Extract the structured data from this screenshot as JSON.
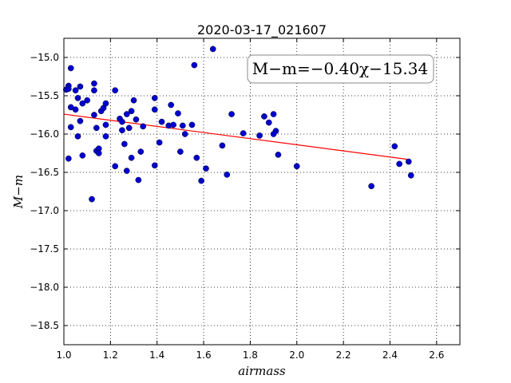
{
  "chart_data": {
    "type": "scatter",
    "title": "2020-03-17_021607",
    "xlabel": "airmass",
    "ylabel": "M−m",
    "xlim": [
      1.0,
      2.7
    ],
    "ylim": [
      -18.75,
      -14.75
    ],
    "y_inverted": false,
    "grid": true,
    "xticks": [
      1.0,
      1.2,
      1.4,
      1.6,
      1.8,
      2.0,
      2.2,
      2.4,
      2.6
    ],
    "xtick_labels": [
      "1.0",
      "1.2",
      "1.4",
      "1.6",
      "1.8",
      "2.0",
      "2.2",
      "2.4",
      "2.6"
    ],
    "yticks": [
      -15.0,
      -15.5,
      -16.0,
      -16.5,
      -17.0,
      -17.5,
      -18.0,
      -18.5
    ],
    "ytick_labels": [
      "−15.0",
      "−15.5",
      "−16.0",
      "−16.5",
      "−17.0",
      "−17.5",
      "−18.0",
      "−18.5"
    ],
    "annotation": "M−m=−0.40χ−15.34",
    "fit_line": {
      "slope": -0.4,
      "intercept": -15.34,
      "x_range": [
        1.0,
        2.48
      ],
      "color": "#ff0000"
    },
    "marker_color": "#0000cc",
    "points": [
      [
        1.01,
        -15.42
      ],
      [
        1.02,
        -15.37
      ],
      [
        1.02,
        -15.41
      ],
      [
        1.03,
        -15.14
      ],
      [
        1.03,
        -15.65
      ],
      [
        1.02,
        -16.32
      ],
      [
        1.03,
        -15.91
      ],
      [
        1.05,
        -15.68
      ],
      [
        1.05,
        -15.43
      ],
      [
        1.06,
        -15.53
      ],
      [
        1.06,
        -16.03
      ],
      [
        1.07,
        -15.38
      ],
      [
        1.07,
        -15.83
      ],
      [
        1.08,
        -15.6
      ],
      [
        1.08,
        -16.28
      ],
      [
        1.1,
        -15.56
      ],
      [
        1.12,
        -16.85
      ],
      [
        1.13,
        -15.34
      ],
      [
        1.13,
        -15.43
      ],
      [
        1.13,
        -15.75
      ],
      [
        1.14,
        -15.92
      ],
      [
        1.14,
        -16.22
      ],
      [
        1.15,
        -16.19
      ],
      [
        1.15,
        -16.25
      ],
      [
        1.16,
        -15.7
      ],
      [
        1.17,
        -15.66
      ],
      [
        1.18,
        -15.6
      ],
      [
        1.18,
        -15.88
      ],
      [
        1.18,
        -16.03
      ],
      [
        1.22,
        -15.43
      ],
      [
        1.22,
        -16.42
      ],
      [
        1.24,
        -15.8
      ],
      [
        1.25,
        -15.84
      ],
      [
        1.25,
        -15.95
      ],
      [
        1.26,
        -16.13
      ],
      [
        1.27,
        -15.74
      ],
      [
        1.27,
        -16.48
      ],
      [
        1.28,
        -15.92
      ],
      [
        1.29,
        -15.7
      ],
      [
        1.3,
        -15.56
      ],
      [
        1.29,
        -16.31
      ],
      [
        1.31,
        -15.81
      ],
      [
        1.32,
        -16.6
      ],
      [
        1.33,
        -16.23
      ],
      [
        1.34,
        -15.9
      ],
      [
        1.39,
        -15.53
      ],
      [
        1.39,
        -15.68
      ],
      [
        1.39,
        -16.41
      ],
      [
        1.41,
        -16.11
      ],
      [
        1.42,
        -15.84
      ],
      [
        1.45,
        -15.89
      ],
      [
        1.46,
        -15.62
      ],
      [
        1.47,
        -15.88
      ],
      [
        1.49,
        -15.73
      ],
      [
        1.5,
        -16.23
      ],
      [
        1.51,
        -15.89
      ],
      [
        1.52,
        -16.0
      ],
      [
        1.55,
        -15.88
      ],
      [
        1.56,
        -15.1
      ],
      [
        1.57,
        -16.31
      ],
      [
        1.59,
        -16.61
      ],
      [
        1.61,
        -16.45
      ],
      [
        1.64,
        -14.89
      ],
      [
        1.68,
        -16.15
      ],
      [
        1.7,
        -16.53
      ],
      [
        1.72,
        -15.74
      ],
      [
        1.77,
        -15.99
      ],
      [
        1.84,
        -16.02
      ],
      [
        1.86,
        -15.77
      ],
      [
        1.88,
        -15.85
      ],
      [
        1.9,
        -15.74
      ],
      [
        1.91,
        -15.96
      ],
      [
        1.9,
        -16.0
      ],
      [
        1.92,
        -16.27
      ],
      [
        2.0,
        -16.42
      ],
      [
        2.32,
        -16.68
      ],
      [
        2.42,
        -16.16
      ],
      [
        2.44,
        -16.39
      ],
      [
        2.48,
        -16.36
      ],
      [
        2.49,
        -16.54
      ]
    ]
  }
}
